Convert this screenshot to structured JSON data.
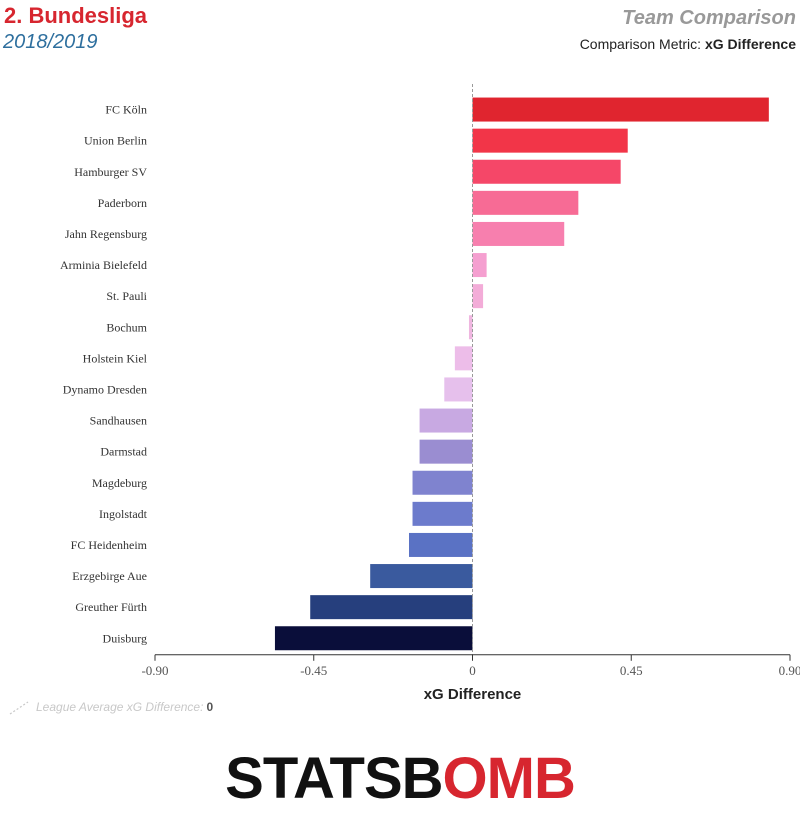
{
  "header": {
    "league": "2. Bundesliga",
    "season": "2018/2019",
    "view_title": "Team Comparison",
    "metric_prefix": "Comparison Metric:",
    "metric_name": "xG Difference"
  },
  "footer": {
    "league_average_label": "League Average xG Difference:",
    "league_average_value": "0",
    "brand_part1": "STATSB",
    "brand_part2": "OMB"
  },
  "chart_data": {
    "type": "bar",
    "orientation": "horizontal",
    "categories": [
      "FC Köln",
      "Union Berlin",
      "Hamburger SV",
      "Paderborn",
      "Jahn Regensburg",
      "Arminia Bielefeld",
      "St. Pauli",
      "Bochum",
      "Holstein Kiel",
      "Dynamo Dresden",
      "Sandhausen",
      "Darmstad",
      "Magdeburg",
      "Ingolstadt",
      "FC Heidenheim",
      "Erzgebirge Aue",
      "Greuther Fürth",
      "Duisburg"
    ],
    "values": [
      0.84,
      0.44,
      0.42,
      0.3,
      0.26,
      0.04,
      0.03,
      -0.01,
      -0.05,
      -0.08,
      -0.15,
      -0.15,
      -0.17,
      -0.17,
      -0.18,
      -0.29,
      -0.46,
      -0.56
    ],
    "colors": [
      "#e0252f",
      "#f23548",
      "#f54768",
      "#f76b95",
      "#f77fae",
      "#f59fd0",
      "#f3acd8",
      "#efb6e0",
      "#edbde9",
      "#e6c0ec",
      "#c8a9e2",
      "#9a8dd1",
      "#7f83cf",
      "#6c7bcc",
      "#5a72c4",
      "#3a5a9e",
      "#263f7d",
      "#0a0e3a"
    ],
    "xlabel": "xG Difference",
    "xlim": [
      -0.9,
      0.9
    ],
    "xticks": [
      "-0.90",
      "-0.45",
      "0",
      "0.45",
      "0.90"
    ],
    "xtick_values": [
      -0.9,
      -0.45,
      0,
      0.45,
      0.9
    ],
    "reference_line": 0
  }
}
